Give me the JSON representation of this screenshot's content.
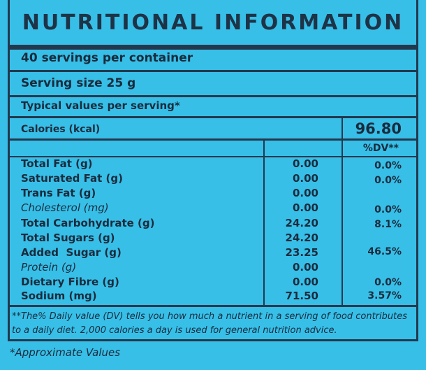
{
  "title": "NUTRITIONAL INFORMATION",
  "servings_per_container": "40 servings per container",
  "serving_size": "Serving size 25 g",
  "typical_values": "Typical values per serving*",
  "calories": {
    "label": "Calories (kcal)",
    "value": "96.80"
  },
  "dv_header": "%DV**",
  "nutrients": [
    {
      "label": "Total Fat (g)",
      "value": "0.00",
      "dv": "0.0%",
      "italic": false
    },
    {
      "label": "Saturated Fat (g)",
      "value": "0.00",
      "dv": "0.0%",
      "italic": false
    },
    {
      "label": "Trans Fat (g)",
      "value": "0.00",
      "dv": "",
      "italic": false
    },
    {
      "label": "Cholesterol (mg)",
      "value": "0.00",
      "dv": "0.0%",
      "italic": true
    },
    {
      "label": "Total Carbohydrate (g)",
      "value": "24.20",
      "dv": "8.1%",
      "italic": false
    },
    {
      "label": "Total Sugars (g)",
      "value": "24.20",
      "dv": "",
      "italic": false
    },
    {
      "label": "Added  Sugar (g)",
      "value": "23.25",
      "dv": "46.5%",
      "italic": false
    },
    {
      "label": "Protein (g)",
      "value": "0.00",
      "dv": "",
      "italic": true
    },
    {
      "label": "Dietary Fibre (g)",
      "value": "0.00",
      "dv": "0.0%",
      "italic": false
    },
    {
      "label": "Sodium (mg)",
      "value": "71.50",
      "dv": "3.57%",
      "italic": false
    }
  ],
  "footnote": "**The% Daily value (DV) tells you how much a nutrient in a serving of food contributes to a daily diet. 2,000 calories a day is used for general nutrition advice.",
  "approx_note": "*Approximate Values",
  "colors": {
    "background": "#37bfe8",
    "border": "#23384d",
    "text": "#1a2b3c"
  }
}
